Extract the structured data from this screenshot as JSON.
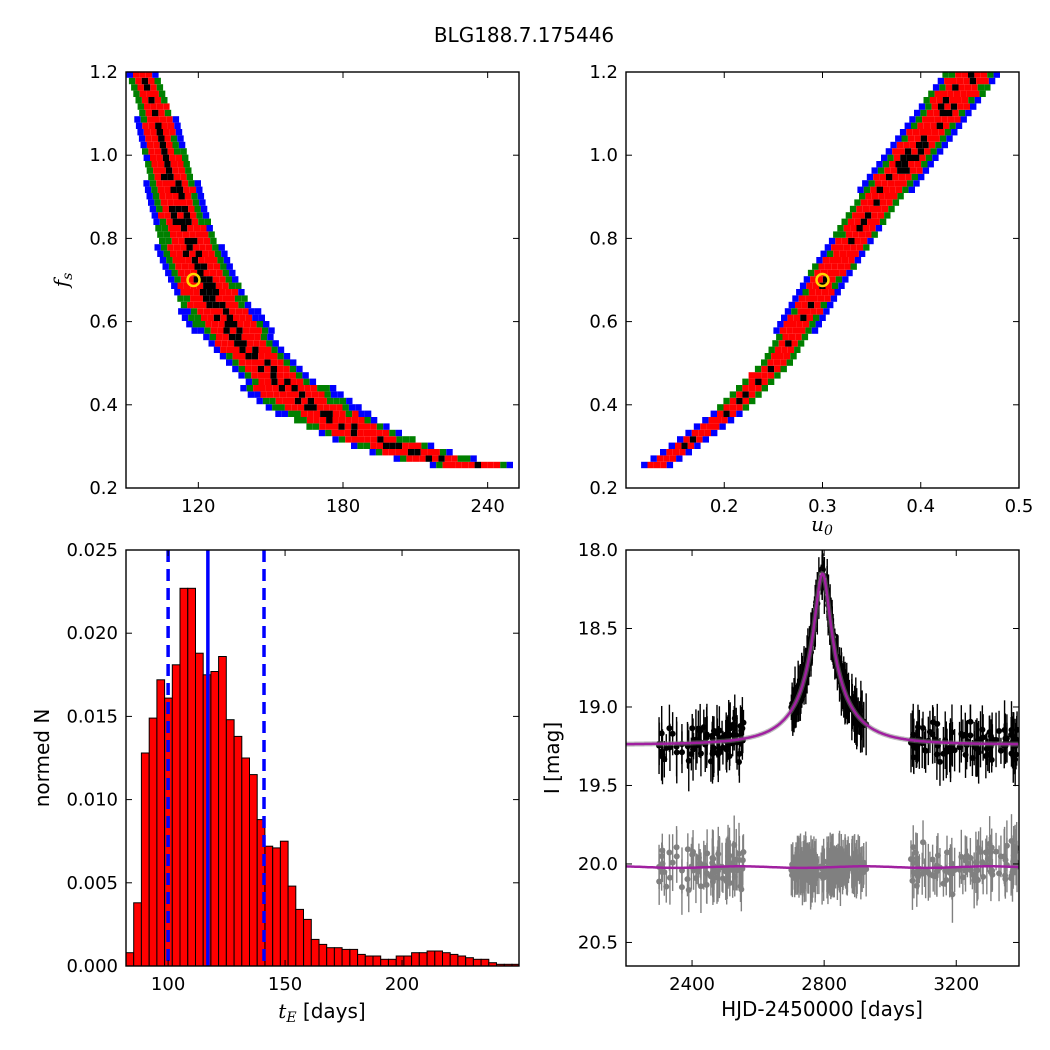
{
  "figure_title": "BLG188.7.175446",
  "chart_data": [
    {
      "id": "fs_vs_tE",
      "type": "heatmap",
      "xlabel": "",
      "ylabel": "f_s",
      "xlim": [
        90,
        253
      ],
      "ylim": [
        0.2,
        1.2
      ],
      "xticks": [
        120,
        180,
        240
      ],
      "yticks": [
        "0.2",
        "0.4",
        "0.6",
        "0.8",
        "1.0",
        "1.2"
      ],
      "confidence_colors": {
        "inner": "#000000",
        "1sigma": "#ff0000",
        "2sigma": "#008000",
        "3sigma": "#0000ff"
      },
      "band_center": [
        [
          94,
          1.22
        ],
        [
          100,
          1.12
        ],
        [
          105,
          1.0
        ],
        [
          110,
          0.88
        ],
        [
          115,
          0.78
        ],
        [
          120,
          0.71
        ],
        [
          125,
          0.65
        ],
        [
          130,
          0.6
        ],
        [
          140,
          0.53
        ],
        [
          150,
          0.47
        ],
        [
          160,
          0.42
        ],
        [
          170,
          0.38
        ],
        [
          180,
          0.35
        ],
        [
          190,
          0.32
        ],
        [
          200,
          0.3
        ],
        [
          210,
          0.28
        ],
        [
          225,
          0.26
        ],
        [
          240,
          0.25
        ]
      ],
      "best_fit": {
        "tE": 118,
        "fs": 0.7
      }
    },
    {
      "id": "fs_vs_u0",
      "type": "heatmap",
      "xlabel": "u_0",
      "ylabel": "",
      "xlim": [
        0.1,
        0.5
      ],
      "ylim": [
        0.2,
        1.2
      ],
      "xticks": [
        "0.2",
        "0.3",
        "0.4",
        "0.5"
      ],
      "yticks": [
        "0.2",
        "0.4",
        "0.6",
        "0.8",
        "1.0",
        "1.2"
      ],
      "confidence_colors": {
        "inner": "#000000",
        "1sigma": "#ff0000",
        "2sigma": "#008000",
        "3sigma": "#0000ff"
      },
      "band_center": [
        [
          0.125,
          0.25
        ],
        [
          0.15,
          0.29
        ],
        [
          0.2,
          0.38
        ],
        [
          0.25,
          0.5
        ],
        [
          0.3,
          0.7
        ],
        [
          0.35,
          0.88
        ],
        [
          0.4,
          1.04
        ],
        [
          0.45,
          1.2
        ]
      ],
      "best_fit": {
        "u0": 0.3,
        "fs": 0.7
      }
    },
    {
      "id": "tE_histogram",
      "type": "bar",
      "xlabel": "t_E [days]",
      "ylabel": "normed N",
      "xlim": [
        82,
        250
      ],
      "ylim": [
        0,
        0.025
      ],
      "xticks": [
        100,
        150,
        200
      ],
      "yticks": [
        "0.000",
        "0.005",
        "0.010",
        "0.015",
        "0.020",
        "0.025"
      ],
      "bin_width": 3.3,
      "bin_start": 82,
      "values": [
        0.0008,
        0.0038,
        0.0128,
        0.0149,
        0.0172,
        0.0161,
        0.0181,
        0.0227,
        0.0227,
        0.0188,
        0.0175,
        0.0177,
        0.0186,
        0.0148,
        0.0138,
        0.0125,
        0.0115,
        0.0088,
        0.0072,
        0.0071,
        0.0075,
        0.0048,
        0.0034,
        0.0028,
        0.0016,
        0.0013,
        0.0011,
        0.0011,
        0.001,
        0.001,
        0.0007,
        0.0006,
        0.0006,
        0.0004,
        0.0004,
        0.0006,
        0.0006,
        0.0008,
        0.0008,
        0.0009,
        0.0009,
        0.0008,
        0.0007,
        0.0006,
        0.0005,
        0.0004,
        0.0004,
        0.0002,
        0.0001,
        0.0001,
        0.0001
      ],
      "bar_color": "#ff0000",
      "vlines": [
        {
          "x": 117,
          "style": "solid",
          "color": "#0000ff"
        },
        {
          "x": 100,
          "style": "dashed",
          "color": "#0000ff"
        },
        {
          "x": 141,
          "style": "dashed",
          "color": "#0000ff"
        }
      ]
    },
    {
      "id": "light_curve",
      "type": "scatter",
      "xlabel": "HJD-2450000 [days]",
      "ylabel": "I [mag]",
      "xlim": [
        2200,
        3390
      ],
      "ylim": [
        20.65,
        18.0
      ],
      "y_inverted": true,
      "xticks": [
        2400,
        2800,
        3200
      ],
      "yticks": [
        "18.0",
        "18.5",
        "19.0",
        "19.5",
        "20.0",
        "20.5"
      ],
      "model": {
        "t0": 2795,
        "baseline": 19.24,
        "peak": 18.15,
        "width": 33,
        "color": "#a020a0"
      },
      "residual_offset": 20.02,
      "data_color": "#000000",
      "residual_color": "#808080",
      "observing_seasons": [
        [
          2200,
          2560
        ],
        [
          2690,
          2930
        ],
        [
          3050,
          3390
        ]
      ]
    }
  ]
}
